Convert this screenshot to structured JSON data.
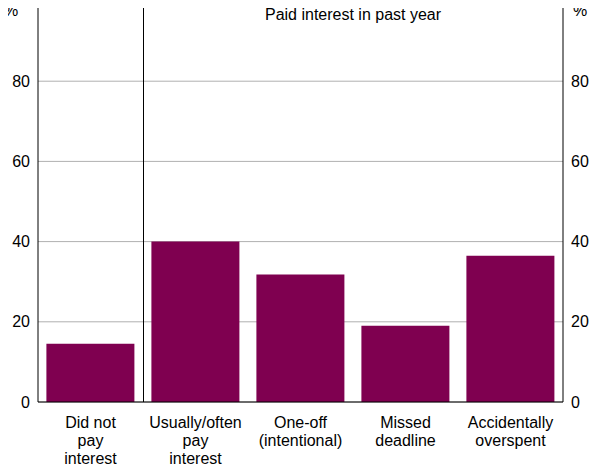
{
  "chart_data": {
    "type": "bar",
    "title": "Paid interest in past year",
    "ylabel": "%",
    "categories": [
      "Did not pay interest",
      "Usually/often pay interest",
      "One-off (intentional)",
      "Missed deadline",
      "Accidentally overspent"
    ],
    "values": [
      14.5,
      40,
      31.8,
      19,
      36.5
    ],
    "color": "#7f0050",
    "ylim": [
      0,
      100
    ],
    "yticks": [
      0,
      20,
      40,
      60,
      80
    ],
    "grid": true
  }
}
